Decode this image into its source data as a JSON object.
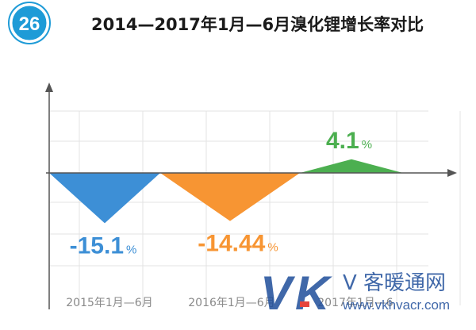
{
  "header": {
    "badge_number": "26",
    "title": "2014—2017年1月—6月溴化锂增长率对比"
  },
  "chart_data": {
    "type": "area",
    "title": "2014—2017年1月—6月溴化锂增长率对比",
    "categories": [
      "2015年1月—6月",
      "2016年1月—6月",
      "2017年1月—6月"
    ],
    "category_labels_visible": [
      "2015年1月—6月",
      "2016年1月—6月",
      "2017年1月—6"
    ],
    "values": [
      -15.1,
      -14.44,
      4.1
    ],
    "value_labels": [
      "-15.1",
      "-14.44",
      "4.1"
    ],
    "unit": "%",
    "ylim": [
      -25,
      20
    ],
    "grid": true,
    "legend": "none"
  },
  "colors": {
    "badge": "#1e9bd7",
    "series": [
      "#3d8fd6",
      "#f79533",
      "#4caf50"
    ],
    "axis": "#555555",
    "grid": "#e3e3e3",
    "watermark_blue": "#1f4e9b",
    "watermark_red": "#e2231a"
  },
  "watermark": {
    "logo_v": "V",
    "logo_k": "K",
    "small_v": "V",
    "site_name": "客暖通网",
    "url": "www.vkhvacr.com"
  }
}
